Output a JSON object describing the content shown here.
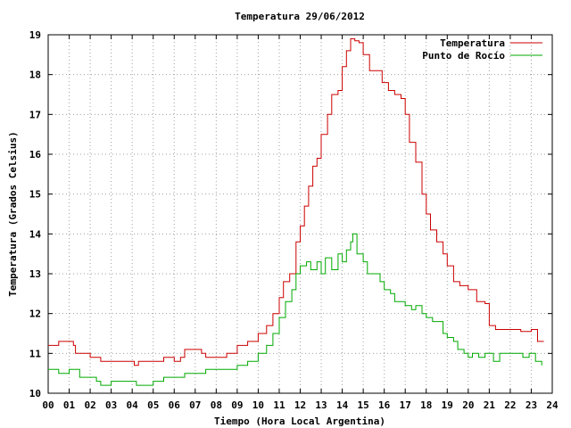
{
  "chart_data": {
    "type": "line",
    "title": "Temperatura 29/06/2012",
    "xlabel": "Tiempo (Hora Local Argentina)",
    "ylabel": "Temperatura (Grados Celsius)",
    "xlim": [
      0,
      24
    ],
    "ylim": [
      10,
      19
    ],
    "x_ticks": [
      "00",
      "01",
      "02",
      "03",
      "04",
      "05",
      "06",
      "07",
      "08",
      "09",
      "10",
      "11",
      "12",
      "13",
      "14",
      "15",
      "16",
      "17",
      "18",
      "19",
      "20",
      "21",
      "22",
      "23",
      "24"
    ],
    "y_ticks": [
      "10",
      "11",
      "12",
      "13",
      "14",
      "15",
      "16",
      "17",
      "18",
      "19"
    ],
    "grid": true,
    "legend_position": "top-right",
    "series": [
      {
        "name": "Temperatura",
        "color": "#cc0000",
        "x": [
          0,
          0.45,
          0.5,
          1.2,
          1.3,
          1.6,
          2.0,
          2.5,
          3.0,
          3.5,
          4.0,
          4.1,
          4.3,
          4.5,
          5.0,
          5.5,
          6.0,
          6.3,
          6.5,
          7.0,
          7.3,
          7.5,
          8.0,
          8.5,
          9.0,
          9.5,
          10.0,
          10.4,
          10.7,
          11.0,
          11.2,
          11.5,
          11.8,
          12.0,
          12.2,
          12.4,
          12.6,
          12.8,
          13.0,
          13.3,
          13.5,
          13.8,
          14.0,
          14.2,
          14.4,
          14.6,
          14.8,
          15.0,
          15.3,
          15.6,
          15.9,
          16.2,
          16.5,
          16.8,
          17.0,
          17.2,
          17.5,
          17.8,
          18.0,
          18.2,
          18.5,
          18.8,
          19.0,
          19.3,
          19.6,
          20.0,
          20.4,
          20.8,
          21.0,
          21.3,
          21.5,
          22.0,
          22.5,
          23.0,
          23.3,
          23.6
        ],
        "y": [
          11.2,
          11.2,
          11.3,
          11.2,
          11.0,
          11.0,
          10.9,
          10.8,
          10.8,
          10.8,
          10.8,
          10.7,
          10.8,
          10.8,
          10.8,
          10.9,
          10.8,
          10.9,
          11.1,
          11.1,
          11.0,
          10.9,
          10.9,
          11.0,
          11.2,
          11.3,
          11.5,
          11.7,
          12.0,
          12.4,
          12.8,
          13.0,
          13.8,
          14.2,
          14.7,
          15.2,
          15.7,
          15.9,
          16.5,
          17.0,
          17.5,
          17.6,
          18.2,
          18.6,
          18.9,
          18.85,
          18.8,
          18.5,
          18.1,
          18.1,
          17.8,
          17.6,
          17.5,
          17.4,
          17.0,
          16.3,
          15.8,
          15.0,
          14.5,
          14.1,
          13.8,
          13.5,
          13.2,
          12.8,
          12.7,
          12.6,
          12.3,
          12.25,
          11.7,
          11.6,
          11.6,
          11.6,
          11.55,
          11.6,
          11.3,
          11.3
        ]
      },
      {
        "name": "Punto de Rocío",
        "color": "#00aa00",
        "x": [
          0,
          0.4,
          0.5,
          1.0,
          1.2,
          1.5,
          2.0,
          2.3,
          2.5,
          3.0,
          3.5,
          4.0,
          4.2,
          4.5,
          5.0,
          5.3,
          5.5,
          6.0,
          6.5,
          7.0,
          7.5,
          8.0,
          8.5,
          9.0,
          9.5,
          10.0,
          10.4,
          10.7,
          11.0,
          11.3,
          11.6,
          11.8,
          12.0,
          12.3,
          12.5,
          12.8,
          13.0,
          13.2,
          13.5,
          13.8,
          14.0,
          14.2,
          14.4,
          14.5,
          14.7,
          14.9,
          15.0,
          15.2,
          15.5,
          15.8,
          16.0,
          16.3,
          16.5,
          16.8,
          17.0,
          17.3,
          17.5,
          17.8,
          18.0,
          18.3,
          18.5,
          18.8,
          19.0,
          19.3,
          19.5,
          19.8,
          20.0,
          20.2,
          20.5,
          20.8,
          21.0,
          21.2,
          21.5,
          21.8,
          22.0,
          22.3,
          22.6,
          22.9,
          23.2,
          23.5
        ],
        "y": [
          10.6,
          10.6,
          10.5,
          10.6,
          10.6,
          10.4,
          10.4,
          10.3,
          10.2,
          10.3,
          10.3,
          10.3,
          10.2,
          10.2,
          10.3,
          10.3,
          10.4,
          10.4,
          10.5,
          10.5,
          10.6,
          10.6,
          10.6,
          10.7,
          10.8,
          11.0,
          11.2,
          11.5,
          11.9,
          12.3,
          12.6,
          13.0,
          13.2,
          13.3,
          13.1,
          13.3,
          13.0,
          13.4,
          13.1,
          13.5,
          13.3,
          13.6,
          13.8,
          14.0,
          13.5,
          13.5,
          13.3,
          13.0,
          13.0,
          12.8,
          12.6,
          12.5,
          12.3,
          12.3,
          12.2,
          12.1,
          12.2,
          12.0,
          11.9,
          11.8,
          11.8,
          11.5,
          11.4,
          11.3,
          11.1,
          11.0,
          10.9,
          11.0,
          10.9,
          11.0,
          11.0,
          10.8,
          11.0,
          11.0,
          11.0,
          11.0,
          10.9,
          11.0,
          10.8,
          10.7
        ]
      }
    ]
  }
}
